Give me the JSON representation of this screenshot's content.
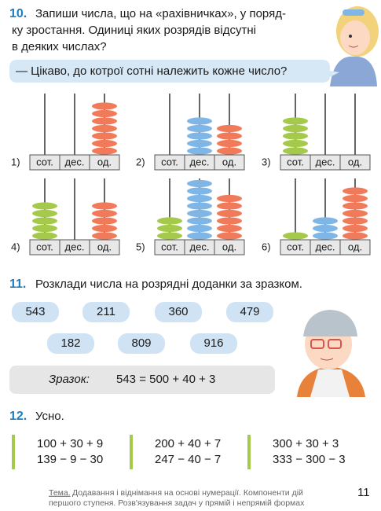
{
  "task10": {
    "number": "10.",
    "lines": [
      "Запиши числа, що на «рахівничках», у поряд-",
      "ку зростання. Одиниці яких розрядів відсутні",
      "в деяких числах?"
    ],
    "bubble": "— Цікаво, до котрої сотні належить кожне число?",
    "abacuses": [
      {
        "label": "1)",
        "rods": [
          {
            "name": "сот.",
            "beads": 0
          },
          {
            "name": "дес.",
            "beads": 0
          },
          {
            "name": "од.",
            "beads": 7
          }
        ]
      },
      {
        "label": "2)",
        "rods": [
          {
            "name": "сот.",
            "beads": 0
          },
          {
            "name": "дес.",
            "beads": 5
          },
          {
            "name": "од.",
            "beads": 4
          }
        ]
      },
      {
        "label": "3)",
        "rods": [
          {
            "name": "сот.",
            "beads": 5
          },
          {
            "name": "дес.",
            "beads": 0
          },
          {
            "name": "од.",
            "beads": 0
          }
        ]
      },
      {
        "label": "4)",
        "rods": [
          {
            "name": "сот.",
            "beads": 5
          },
          {
            "name": "дес.",
            "beads": 0
          },
          {
            "name": "од.",
            "beads": 5
          }
        ]
      },
      {
        "label": "5)",
        "rods": [
          {
            "name": "сот.",
            "beads": 3
          },
          {
            "name": "дес.",
            "beads": 8
          },
          {
            "name": "од.",
            "beads": 6
          }
        ]
      },
      {
        "label": "6)",
        "rods": [
          {
            "name": "сот.",
            "beads": 1
          },
          {
            "name": "дес.",
            "beads": 3
          },
          {
            "name": "од.",
            "beads": 7
          }
        ]
      }
    ]
  },
  "task11": {
    "number": "11.",
    "text": "Розклади числа на розрядні доданки за зразком.",
    "numbers": [
      [
        "543",
        "211",
        "360",
        "479"
      ],
      [
        "182",
        "809",
        "916"
      ]
    ],
    "sample_label": "Зразок:",
    "sample": "543 = 500 + 40 + 3"
  },
  "task12": {
    "number": "12.",
    "text": "Усно.",
    "columns": [
      [
        "100 + 30 + 9",
        "139 − 9 − 30"
      ],
      [
        "200 + 40 + 7",
        "247 − 40 − 7"
      ],
      [
        "300 + 30 + 3",
        "333 − 300 − 3"
      ]
    ]
  },
  "footer": {
    "topic_label": "Тема.",
    "lines": [
      "Додавання і віднімання на основі нумерації. Компоненти дій",
      "першого ступеня. Розв'язування задач у прямій і непрямій формах"
    ],
    "page": "11"
  }
}
